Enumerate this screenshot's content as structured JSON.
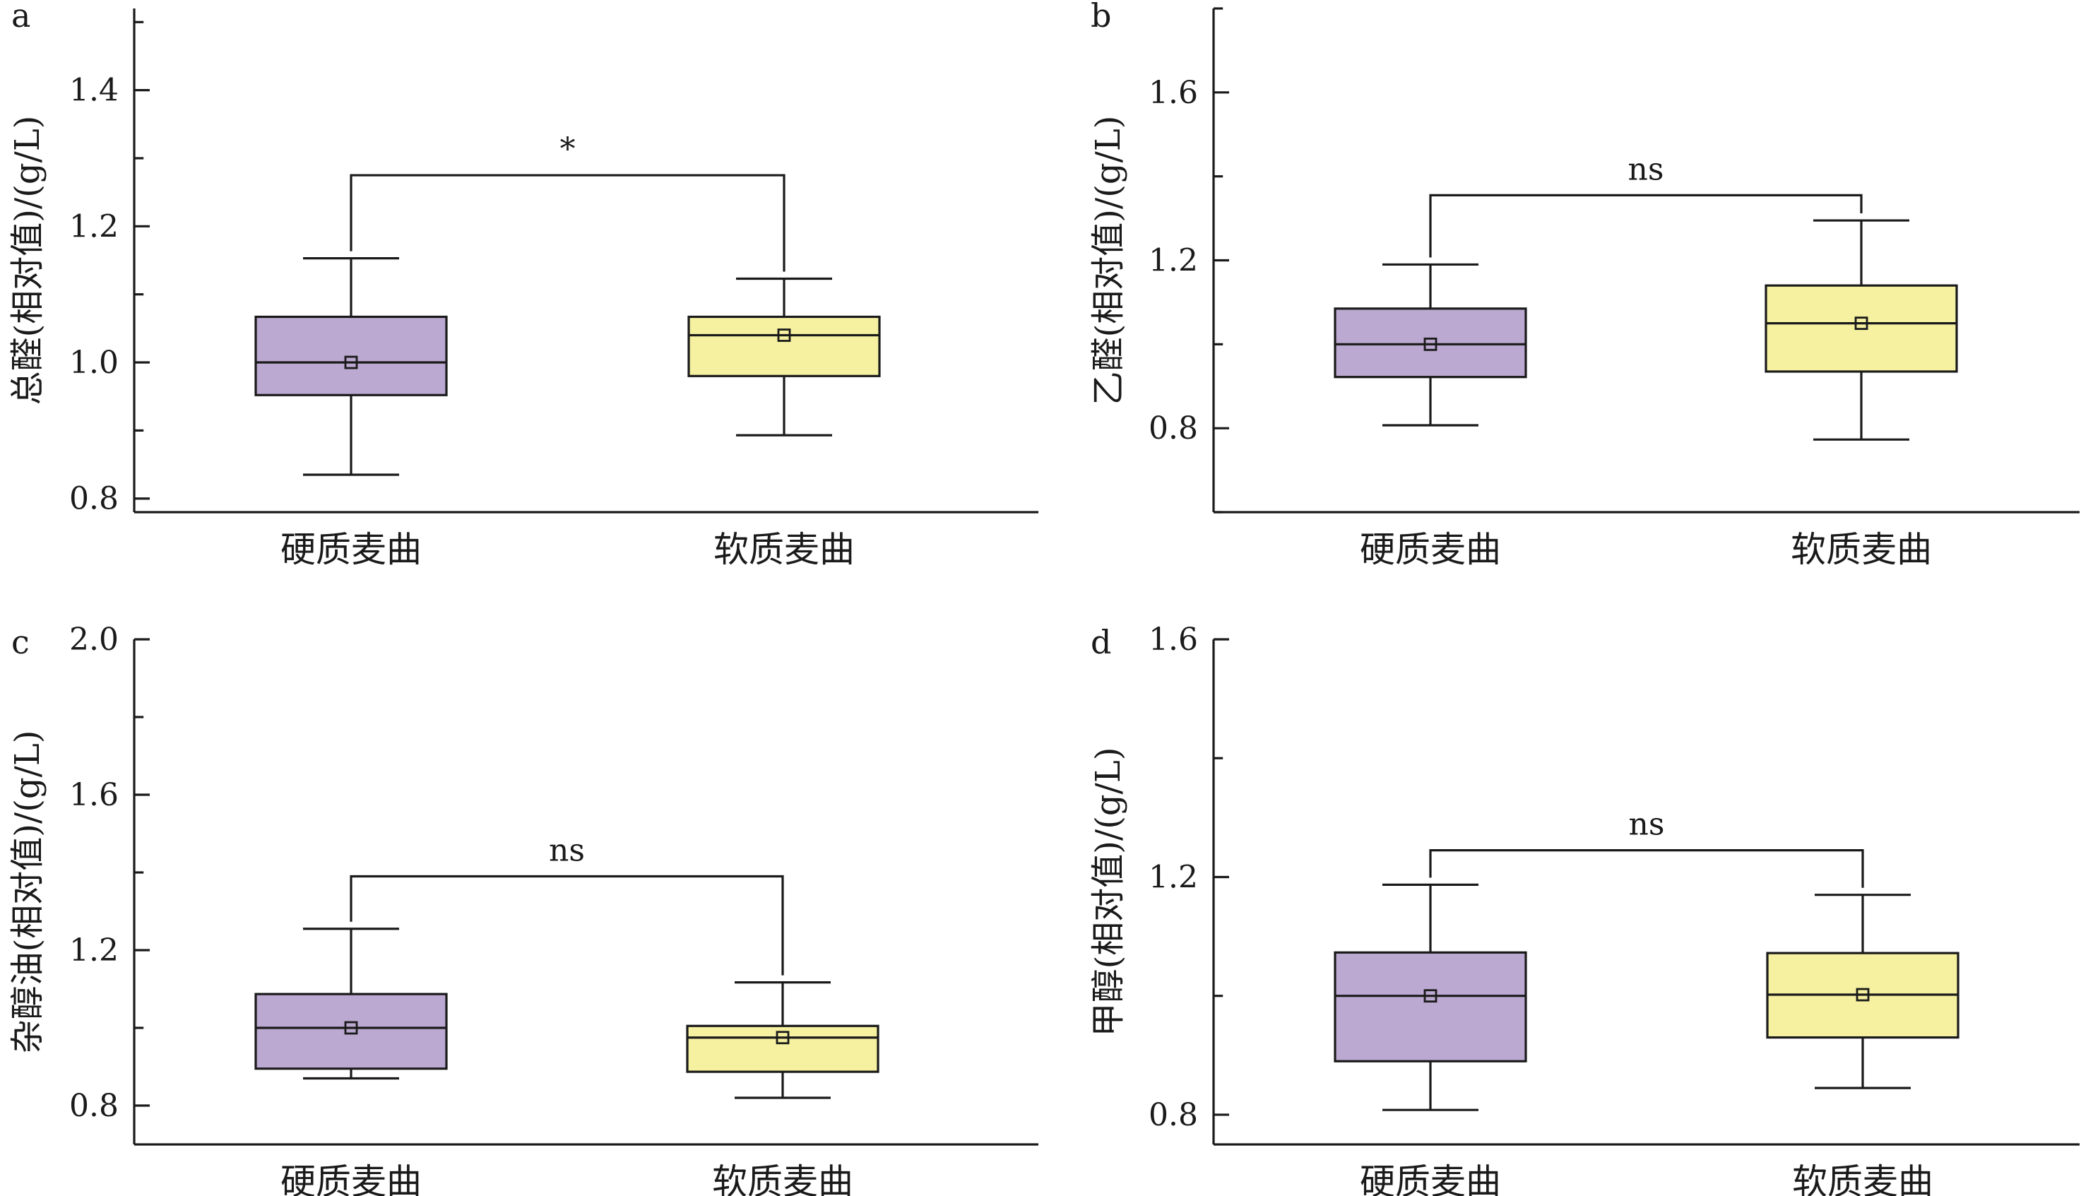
{
  "chart_data": [
    {
      "type": "box",
      "panel_label": "a",
      "ylabel": "总醛(相对值)/(g/L)",
      "ylim": [
        0.78,
        1.52
      ],
      "yticks": [
        0.8,
        1.0,
        1.2,
        1.4
      ],
      "ytick_labels": [
        "0.8",
        "1.0",
        "1.2",
        "1.4"
      ],
      "categories": [
        "硬质麦曲",
        "软质麦曲"
      ],
      "boxes": [
        {
          "whisker_low": 0.835,
          "q1": 0.952,
          "median": 1.0,
          "q3": 1.067,
          "whisker_high": 1.153,
          "mean": 1.0,
          "color": "#BCA9D1"
        },
        {
          "whisker_low": 0.893,
          "q1": 0.98,
          "median": 1.04,
          "q3": 1.067,
          "whisker_high": 1.123,
          "mean": 1.04,
          "color": "#F5F1A1"
        }
      ],
      "significance": {
        "label": "*",
        "y": 1.275
      }
    },
    {
      "type": "box",
      "panel_label": "b",
      "ylabel": "乙醛(相对值)/(g/L)",
      "ylim": [
        0.6,
        1.8
      ],
      "yticks": [
        0.8,
        1.2,
        1.6
      ],
      "ytick_labels": [
        "0.8",
        "1.2",
        "1.6"
      ],
      "categories": [
        "硬质麦曲",
        "软质麦曲"
      ],
      "boxes": [
        {
          "whisker_low": 0.807,
          "q1": 0.922,
          "median": 1.0,
          "q3": 1.085,
          "whisker_high": 1.19,
          "mean": 1.0,
          "color": "#BCA9D1"
        },
        {
          "whisker_low": 0.773,
          "q1": 0.935,
          "median": 1.05,
          "q3": 1.14,
          "whisker_high": 1.295,
          "mean": 1.05,
          "color": "#F5F1A1"
        }
      ],
      "significance": {
        "label": "ns",
        "y": 1.355
      }
    },
    {
      "type": "box",
      "panel_label": "c",
      "ylabel": "杂醇油(相对值)/(g/L)",
      "ylim": [
        0.7,
        2.0
      ],
      "yticks": [
        0.8,
        1.2,
        1.6,
        2.0
      ],
      "ytick_labels": [
        "0.8",
        "1.2",
        "1.6",
        "2.0"
      ],
      "categories": [
        "硬质麦曲",
        "软质麦曲"
      ],
      "boxes": [
        {
          "whisker_low": 0.87,
          "q1": 0.895,
          "median": 1.0,
          "q3": 1.087,
          "whisker_high": 1.255,
          "mean": 1.0,
          "color": "#BCA9D1"
        },
        {
          "whisker_low": 0.82,
          "q1": 0.887,
          "median": 0.975,
          "q3": 1.005,
          "whisker_high": 1.117,
          "mean": 0.975,
          "color": "#F5F1A1"
        }
      ],
      "significance": {
        "label": "ns",
        "y": 1.39
      }
    },
    {
      "type": "box",
      "panel_label": "d",
      "ylabel": "甲醇(相对值)/(g/L)",
      "ylim": [
        0.75,
        1.6
      ],
      "yticks": [
        0.8,
        1.2,
        1.6
      ],
      "ytick_labels": [
        "0.8",
        "1.2",
        "1.6"
      ],
      "categories": [
        "硬质麦曲",
        "软质麦曲"
      ],
      "boxes": [
        {
          "whisker_low": 0.808,
          "q1": 0.89,
          "median": 1.0,
          "q3": 1.073,
          "whisker_high": 1.187,
          "mean": 1.0,
          "color": "#BCA9D1"
        },
        {
          "whisker_low": 0.845,
          "q1": 0.93,
          "median": 1.002,
          "q3": 1.072,
          "whisker_high": 1.17,
          "mean": 1.002,
          "color": "#F5F1A1"
        }
      ],
      "significance": {
        "label": "ns",
        "y": 1.245
      }
    }
  ]
}
